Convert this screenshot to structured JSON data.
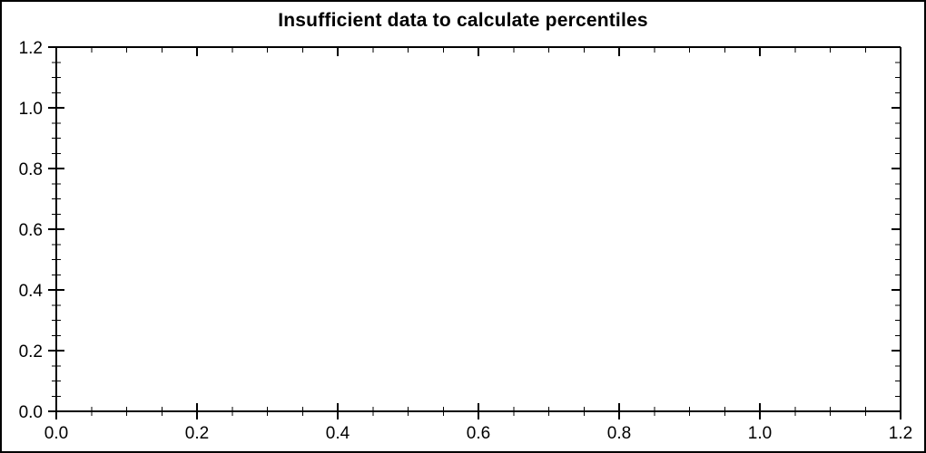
{
  "window": {
    "background": "#ffffff",
    "border_color": "#000000"
  },
  "chart_data": {
    "type": "scatter",
    "title": "Insufficient data to calculate percentiles",
    "series": [],
    "grid": false,
    "legend": false,
    "plot_background": "#ffffff",
    "axis_color": "#000000",
    "text_color": "#000000",
    "xlabel": "",
    "ylabel": "",
    "x_axis": {
      "min": 0.0,
      "max": 1.2,
      "major_step": 0.2,
      "minor_step": 0.05,
      "tick_labels": [
        "0.0",
        "0.2",
        "0.4",
        "0.6",
        "0.8",
        "1.0",
        "1.2"
      ]
    },
    "y_axis": {
      "min": 0.0,
      "max": 1.2,
      "major_step": 0.2,
      "minor_step": 0.05,
      "tick_labels": [
        "0.0",
        "0.2",
        "0.4",
        "0.6",
        "0.8",
        "1.0",
        "1.2"
      ]
    }
  }
}
